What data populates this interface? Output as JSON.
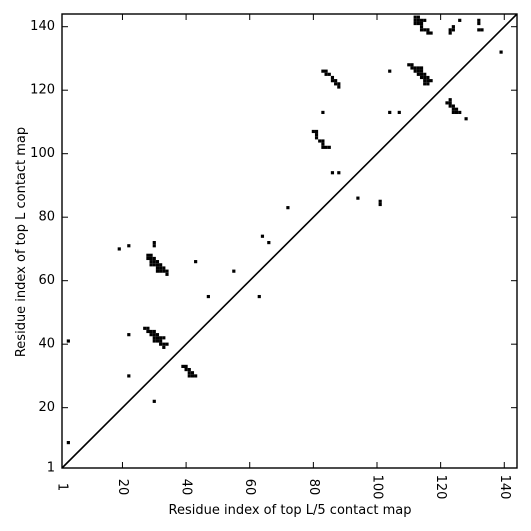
{
  "chart_data": {
    "type": "scatter",
    "title": "",
    "xlabel": "Residue index of top L/5 contact map",
    "ylabel": "Residue index of top L contact map",
    "xlim": [
      1,
      144
    ],
    "ylim": [
      1,
      144
    ],
    "x_ticks": [
      1,
      20,
      40,
      60,
      80,
      100,
      120,
      140
    ],
    "y_ticks": [
      1,
      20,
      40,
      60,
      80,
      100,
      120,
      140
    ],
    "grid": false,
    "legend": "none",
    "marker": "square",
    "marker_color": "#000000",
    "diagonal": {
      "from": [
        1,
        1
      ],
      "to": [
        144,
        144
      ]
    },
    "top_L_contacts": [
      {
        "x": 3,
        "y": 41
      },
      {
        "x": 3,
        "y": 9
      },
      {
        "x": 19,
        "y": 70
      },
      {
        "x": 22,
        "y": 71
      },
      {
        "x": 22,
        "y": 43
      },
      {
        "x": 22,
        "y": 30
      },
      {
        "x": 27,
        "y": 45
      },
      {
        "x": 28,
        "y": 45
      },
      {
        "x": 28,
        "y": 44
      },
      {
        "x": 29,
        "y": 44
      },
      {
        "x": 29,
        "y": 43
      },
      {
        "x": 30,
        "y": 44
      },
      {
        "x": 30,
        "y": 43
      },
      {
        "x": 31,
        "y": 43
      },
      {
        "x": 30,
        "y": 42
      },
      {
        "x": 31,
        "y": 42
      },
      {
        "x": 30,
        "y": 41
      },
      {
        "x": 31,
        "y": 41
      },
      {
        "x": 32,
        "y": 41
      },
      {
        "x": 32,
        "y": 42
      },
      {
        "x": 33,
        "y": 42
      },
      {
        "x": 32,
        "y": 40
      },
      {
        "x": 33,
        "y": 40
      },
      {
        "x": 33,
        "y": 39
      },
      {
        "x": 34,
        "y": 40
      },
      {
        "x": 28,
        "y": 68
      },
      {
        "x": 29,
        "y": 68
      },
      {
        "x": 28,
        "y": 67
      },
      {
        "x": 29,
        "y": 67
      },
      {
        "x": 30,
        "y": 67
      },
      {
        "x": 29,
        "y": 66
      },
      {
        "x": 30,
        "y": 66
      },
      {
        "x": 31,
        "y": 66
      },
      {
        "x": 29,
        "y": 65
      },
      {
        "x": 30,
        "y": 65
      },
      {
        "x": 31,
        "y": 65
      },
      {
        "x": 32,
        "y": 65
      },
      {
        "x": 31,
        "y": 64
      },
      {
        "x": 32,
        "y": 64
      },
      {
        "x": 33,
        "y": 64
      },
      {
        "x": 31,
        "y": 63
      },
      {
        "x": 32,
        "y": 63
      },
      {
        "x": 33,
        "y": 63
      },
      {
        "x": 34,
        "y": 63
      },
      {
        "x": 34,
        "y": 62
      },
      {
        "x": 30,
        "y": 72
      },
      {
        "x": 30,
        "y": 71
      },
      {
        "x": 30,
        "y": 22
      },
      {
        "x": 39,
        "y": 33
      },
      {
        "x": 40,
        "y": 33
      },
      {
        "x": 40,
        "y": 32
      },
      {
        "x": 41,
        "y": 32
      },
      {
        "x": 41,
        "y": 31
      },
      {
        "x": 42,
        "y": 31
      },
      {
        "x": 41,
        "y": 30
      },
      {
        "x": 42,
        "y": 30
      },
      {
        "x": 43,
        "y": 30
      },
      {
        "x": 43,
        "y": 66
      },
      {
        "x": 47,
        "y": 55
      },
      {
        "x": 55,
        "y": 63
      },
      {
        "x": 63,
        "y": 55
      },
      {
        "x": 64,
        "y": 74
      },
      {
        "x": 66,
        "y": 72
      },
      {
        "x": 72,
        "y": 83
      },
      {
        "x": 80,
        "y": 107
      },
      {
        "x": 81,
        "y": 107
      },
      {
        "x": 81,
        "y": 106
      },
      {
        "x": 81,
        "y": 105
      },
      {
        "x": 82,
        "y": 104
      },
      {
        "x": 83,
        "y": 104
      },
      {
        "x": 83,
        "y": 103
      },
      {
        "x": 83,
        "y": 102
      },
      {
        "x": 84,
        "y": 102
      },
      {
        "x": 85,
        "y": 102
      },
      {
        "x": 83,
        "y": 113
      },
      {
        "x": 83,
        "y": 126
      },
      {
        "x": 84,
        "y": 126
      },
      {
        "x": 84,
        "y": 125
      },
      {
        "x": 85,
        "y": 125
      },
      {
        "x": 86,
        "y": 124
      },
      {
        "x": 86,
        "y": 123
      },
      {
        "x": 87,
        "y": 123
      },
      {
        "x": 87,
        "y": 122
      },
      {
        "x": 88,
        "y": 122
      },
      {
        "x": 88,
        "y": 121
      },
      {
        "x": 86,
        "y": 94
      },
      {
        "x": 88,
        "y": 94
      },
      {
        "x": 94,
        "y": 86
      },
      {
        "x": 101,
        "y": 85
      },
      {
        "x": 101,
        "y": 84
      },
      {
        "x": 104,
        "y": 126
      },
      {
        "x": 104,
        "y": 113
      },
      {
        "x": 107,
        "y": 113
      },
      {
        "x": 110,
        "y": 128
      },
      {
        "x": 111,
        "y": 128
      },
      {
        "x": 111,
        "y": 127
      },
      {
        "x": 112,
        "y": 127
      },
      {
        "x": 112,
        "y": 126
      },
      {
        "x": 113,
        "y": 127
      },
      {
        "x": 114,
        "y": 127
      },
      {
        "x": 113,
        "y": 126
      },
      {
        "x": 114,
        "y": 126
      },
      {
        "x": 113,
        "y": 125
      },
      {
        "x": 114,
        "y": 125
      },
      {
        "x": 114,
        "y": 124
      },
      {
        "x": 115,
        "y": 124
      },
      {
        "x": 115,
        "y": 125
      },
      {
        "x": 116,
        "y": 124
      },
      {
        "x": 116,
        "y": 123
      },
      {
        "x": 117,
        "y": 123
      },
      {
        "x": 115,
        "y": 123
      },
      {
        "x": 115,
        "y": 122
      },
      {
        "x": 116,
        "y": 122
      },
      {
        "x": 112,
        "y": 143
      },
      {
        "x": 113,
        "y": 143
      },
      {
        "x": 112,
        "y": 142
      },
      {
        "x": 113,
        "y": 142
      },
      {
        "x": 112,
        "y": 141
      },
      {
        "x": 113,
        "y": 141
      },
      {
        "x": 114,
        "y": 142
      },
      {
        "x": 115,
        "y": 142
      },
      {
        "x": 114,
        "y": 141
      },
      {
        "x": 114,
        "y": 140
      },
      {
        "x": 114,
        "y": 139
      },
      {
        "x": 115,
        "y": 139
      },
      {
        "x": 116,
        "y": 139
      },
      {
        "x": 116,
        "y": 138
      },
      {
        "x": 117,
        "y": 138
      },
      {
        "x": 122,
        "y": 116
      },
      {
        "x": 123,
        "y": 117
      },
      {
        "x": 123,
        "y": 116
      },
      {
        "x": 123,
        "y": 115
      },
      {
        "x": 124,
        "y": 115
      },
      {
        "x": 124,
        "y": 114
      },
      {
        "x": 124,
        "y": 113
      },
      {
        "x": 125,
        "y": 114
      },
      {
        "x": 125,
        "y": 113
      },
      {
        "x": 126,
        "y": 113
      },
      {
        "x": 128,
        "y": 111
      },
      {
        "x": 123,
        "y": 139
      },
      {
        "x": 123,
        "y": 138
      },
      {
        "x": 124,
        "y": 139
      },
      {
        "x": 124,
        "y": 140
      },
      {
        "x": 126,
        "y": 142
      },
      {
        "x": 132,
        "y": 142
      },
      {
        "x": 132,
        "y": 141
      },
      {
        "x": 132,
        "y": 139
      },
      {
        "x": 133,
        "y": 139
      },
      {
        "x": 139,
        "y": 132
      }
    ]
  }
}
